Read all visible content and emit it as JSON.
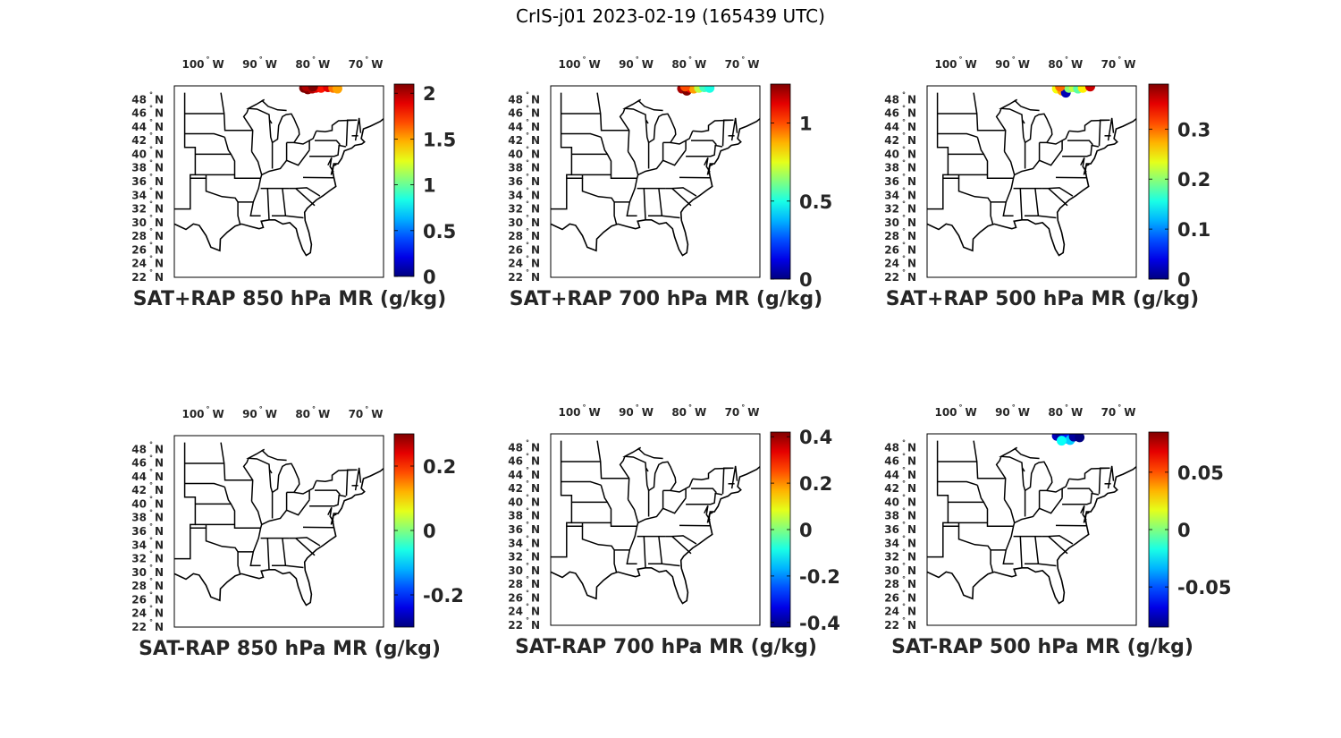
{
  "figure": {
    "title": "CrIS-j01 2023-02-19 (165439 UTC)"
  },
  "chart_data": [
    {
      "type": "scatter",
      "map": "eastern-us",
      "title": "SAT+RAP 850 hPa MR (g/kg)",
      "lon_ticks": [
        "100",
        "90",
        "80",
        "70"
      ],
      "lon_hemisphere": "W",
      "lat_ticks": [
        "22",
        "24",
        "26",
        "28",
        "30",
        "32",
        "34",
        "36",
        "38",
        "40",
        "42",
        "44",
        "46",
        "48"
      ],
      "lat_hemisphere": "N",
      "colorbar": {
        "colormap": "jet",
        "range": [
          0,
          2.1
        ],
        "ticks": [
          0,
          0.5,
          1,
          1.5,
          2
        ],
        "tick_labels": [
          "0",
          "0.5",
          "1",
          "1.5",
          "2"
        ]
      },
      "points": [
        {
          "lon": -81.5,
          "lat": 49.7,
          "value": 2.1
        },
        {
          "lon": -80.8,
          "lat": 49.5,
          "value": 2.1
        },
        {
          "lon": -80.0,
          "lat": 49.6,
          "value": 2.0
        },
        {
          "lon": -79.3,
          "lat": 49.7,
          "value": 1.9
        },
        {
          "lon": -78.3,
          "lat": 49.7,
          "value": 1.8
        },
        {
          "lon": -77.0,
          "lat": 49.8,
          "value": 1.9
        },
        {
          "lon": -76.0,
          "lat": 49.7,
          "value": 1.6
        },
        {
          "lon": -75.2,
          "lat": 49.6,
          "value": 1.5
        },
        {
          "lon": -81.0,
          "lat": 49.9,
          "value": 2.0
        },
        {
          "lon": -79.8,
          "lat": 49.9,
          "value": 2.1
        }
      ]
    },
    {
      "type": "scatter",
      "map": "eastern-us",
      "title": "SAT+RAP 700 hPa MR (g/kg)",
      "lon_ticks": [
        "100",
        "90",
        "80",
        "70"
      ],
      "lon_hemisphere": "W",
      "lat_ticks": [
        "22",
        "24",
        "26",
        "28",
        "30",
        "32",
        "34",
        "36",
        "38",
        "40",
        "42",
        "44",
        "46",
        "48"
      ],
      "lat_hemisphere": "N",
      "colorbar": {
        "colormap": "jet",
        "range": [
          0,
          1.25
        ],
        "ticks": [
          0,
          0.5,
          1
        ],
        "tick_labels": [
          "0",
          "0.5",
          "1"
        ]
      },
      "points": [
        {
          "lon": -81.2,
          "lat": 49.6,
          "value": 1.2
        },
        {
          "lon": -80.3,
          "lat": 49.3,
          "value": 1.25
        },
        {
          "lon": -79.6,
          "lat": 49.7,
          "value": 1.1
        },
        {
          "lon": -79.0,
          "lat": 49.6,
          "value": 0.9
        },
        {
          "lon": -78.0,
          "lat": 49.7,
          "value": 0.7
        },
        {
          "lon": -77.0,
          "lat": 49.8,
          "value": 0.55
        },
        {
          "lon": -76.0,
          "lat": 49.7,
          "value": 0.5
        },
        {
          "lon": -80.6,
          "lat": 49.9,
          "value": 1.0
        }
      ]
    },
    {
      "type": "scatter",
      "map": "eastern-us",
      "title": "SAT+RAP 500 hPa MR (g/kg)",
      "lon_ticks": [
        "100",
        "90",
        "80",
        "70"
      ],
      "lon_hemisphere": "W",
      "lat_ticks": [
        "22",
        "24",
        "26",
        "28",
        "30",
        "32",
        "34",
        "36",
        "38",
        "40",
        "42",
        "44",
        "46",
        "48"
      ],
      "lat_hemisphere": "N",
      "colorbar": {
        "colormap": "jet",
        "range": [
          0,
          0.39
        ],
        "ticks": [
          0,
          0.1,
          0.2,
          0.3
        ],
        "tick_labels": [
          "0",
          "0.1",
          "0.2",
          "0.3"
        ]
      },
      "points": [
        {
          "lon": -81.5,
          "lat": 49.6,
          "value": 0.24
        },
        {
          "lon": -80.5,
          "lat": 49.3,
          "value": 0.28
        },
        {
          "lon": -79.8,
          "lat": 49.0,
          "value": 0.02
        },
        {
          "lon": -79.2,
          "lat": 49.7,
          "value": 0.2
        },
        {
          "lon": -78.3,
          "lat": 49.8,
          "value": 0.22
        },
        {
          "lon": -77.5,
          "lat": 49.6,
          "value": 0.18
        },
        {
          "lon": -76.6,
          "lat": 49.7,
          "value": 0.25
        },
        {
          "lon": -75.2,
          "lat": 49.9,
          "value": 0.36
        },
        {
          "lon": -80.9,
          "lat": 49.9,
          "value": 0.3
        }
      ]
    },
    {
      "type": "scatter",
      "map": "eastern-us",
      "title": "SAT-RAP 850 hPa MR (g/kg)",
      "lon_ticks": [
        "100",
        "90",
        "80",
        "70"
      ],
      "lon_hemisphere": "W",
      "lat_ticks": [
        "22",
        "24",
        "26",
        "28",
        "30",
        "32",
        "34",
        "36",
        "38",
        "40",
        "42",
        "44",
        "46",
        "48"
      ],
      "lat_hemisphere": "N",
      "colorbar": {
        "colormap": "jet",
        "range": [
          -0.3,
          0.3
        ],
        "ticks": [
          -0.2,
          0,
          0.2
        ],
        "tick_labels": [
          "-0.2",
          "0",
          "0.2"
        ]
      },
      "points": []
    },
    {
      "type": "scatter",
      "map": "eastern-us",
      "title": "SAT-RAP 700 hPa MR (g/kg)",
      "lon_ticks": [
        "100",
        "90",
        "80",
        "70"
      ],
      "lon_hemisphere": "W",
      "lat_ticks": [
        "22",
        "24",
        "26",
        "28",
        "30",
        "32",
        "34",
        "36",
        "38",
        "40",
        "42",
        "44",
        "46",
        "48"
      ],
      "lat_hemisphere": "N",
      "colorbar": {
        "colormap": "jet",
        "range": [
          -0.42,
          0.42
        ],
        "ticks": [
          -0.4,
          -0.2,
          0,
          0.2,
          0.4
        ],
        "tick_labels": [
          "-0.4",
          "-0.2",
          "0",
          "0.2",
          "0.4"
        ]
      },
      "points": []
    },
    {
      "type": "scatter",
      "map": "eastern-us",
      "title": "SAT-RAP 500 hPa MR (g/kg)",
      "lon_ticks": [
        "100",
        "90",
        "80",
        "70"
      ],
      "lon_hemisphere": "W",
      "lat_ticks": [
        "22",
        "24",
        "26",
        "28",
        "30",
        "32",
        "34",
        "36",
        "38",
        "40",
        "42",
        "44",
        "46",
        "48"
      ],
      "lat_hemisphere": "N",
      "colorbar": {
        "colormap": "jet",
        "range": [
          -0.085,
          0.085
        ],
        "ticks": [
          -0.05,
          0,
          0.05
        ],
        "tick_labels": [
          "-0.05",
          "0",
          "0.05"
        ]
      },
      "points": [
        {
          "lon": -81.5,
          "lat": 49.7,
          "value": -0.075
        },
        {
          "lon": -80.8,
          "lat": 49.8,
          "value": -0.08
        },
        {
          "lon": -80.0,
          "lat": 49.6,
          "value": -0.07
        },
        {
          "lon": -79.5,
          "lat": 49.3,
          "value": -0.06
        },
        {
          "lon": -79.0,
          "lat": 49.1,
          "value": -0.03
        },
        {
          "lon": -78.3,
          "lat": 49.6,
          "value": -0.08
        },
        {
          "lon": -77.2,
          "lat": 49.5,
          "value": -0.085
        },
        {
          "lon": -80.6,
          "lat": 49.0,
          "value": -0.02
        }
      ]
    }
  ]
}
